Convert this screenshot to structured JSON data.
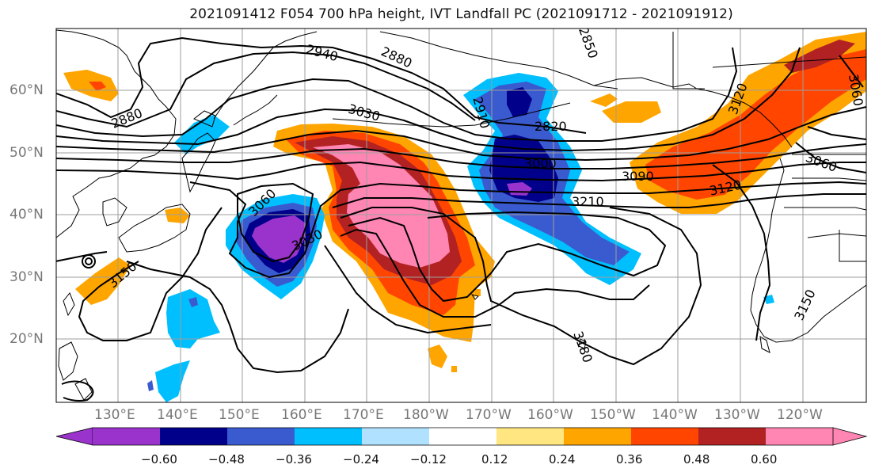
{
  "title": "2021091412 F054 700 hPa height, IVT Landfall PC (2021091712 - 2021091912)",
  "lat_labels": [
    "60°N",
    "50°N",
    "40°N",
    "30°N",
    "20°N"
  ],
  "lon_labels": [
    "130°E",
    "140°E",
    "150°E",
    "160°E",
    "170°E",
    "180°W",
    "170°W",
    "160°W",
    "150°W",
    "140°W",
    "130°W",
    "120°W"
  ],
  "contour_labels": [
    "2940",
    "2880",
    "2850",
    "2880",
    "3030",
    "2910",
    "2820",
    "3000",
    "3090",
    "3120",
    "3060",
    "3060",
    "3030",
    "3210",
    "3150",
    "3150",
    "3180",
    "3120",
    "3060"
  ],
  "colorbar": {
    "ticks": [
      "−0.60",
      "−0.48",
      "−0.36",
      "−0.24",
      "−0.12",
      "0.12",
      "0.24",
      "0.36",
      "0.48",
      "0.60"
    ],
    "colors": [
      "#9933cc",
      "#00008b",
      "#3a5bcf",
      "#00bfff",
      "#b0e2ff",
      "#ffffff",
      "#ffe680",
      "#ffa500",
      "#ff4500",
      "#b22222",
      "#ff85b3"
    ]
  }
}
